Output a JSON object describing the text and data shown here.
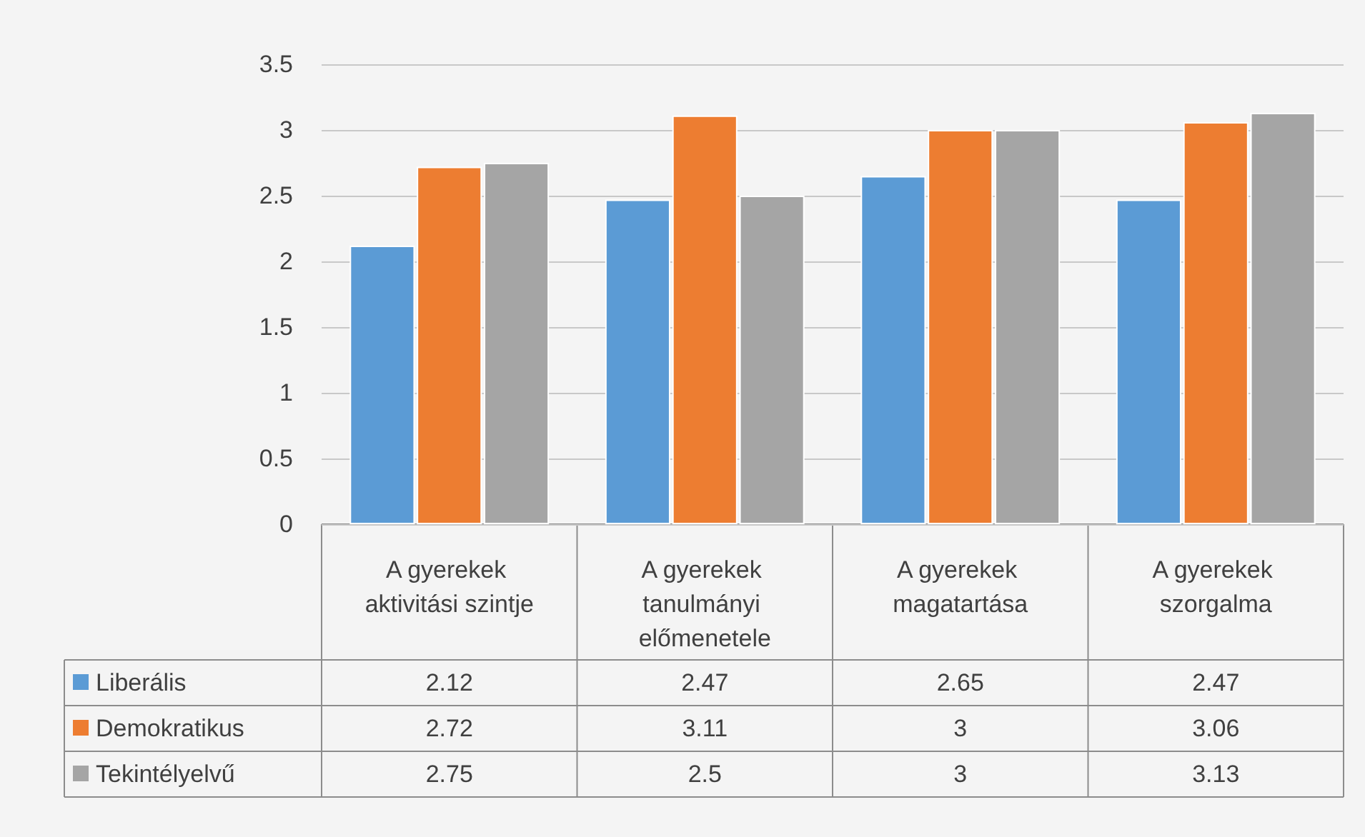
{
  "chart_data": {
    "type": "bar",
    "categories": [
      "A gyerekek aktivitási szintje",
      "A gyerekek tanulmányi előmenetele",
      "A gyerekek magatartása",
      "A gyerekek szorgalma"
    ],
    "series": [
      {
        "name": "Liberális",
        "color": "#5b9bd5",
        "values": [
          2.12,
          2.47,
          2.65,
          2.47
        ]
      },
      {
        "name": "Demokratikus",
        "color": "#ed7d31",
        "values": [
          2.72,
          3.11,
          3,
          3.06
        ]
      },
      {
        "name": "Tekintélyelvű",
        "color": "#a5a5a5",
        "values": [
          2.75,
          2.5,
          3,
          3.13
        ]
      }
    ],
    "ylim": [
      0,
      3.5
    ],
    "yticks": [
      0,
      0.5,
      1,
      1.5,
      2,
      2.5,
      3,
      3.5
    ],
    "grid": "y",
    "legend": "bottom left",
    "data_labels": true
  }
}
